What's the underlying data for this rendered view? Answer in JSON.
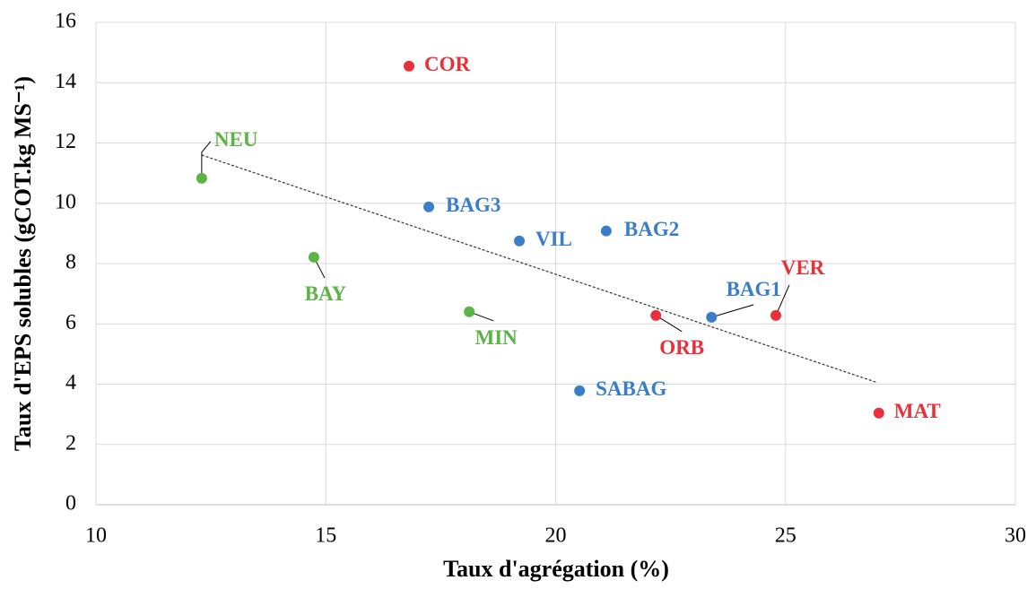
{
  "chart_data": {
    "type": "scatter",
    "x_label": "Taux d'agrégation (%)",
    "y_label": "Taux d'EPS solubles (gCOT.kg MS⁻¹)",
    "xlim": [
      10,
      30
    ],
    "xticks": [
      10,
      15,
      20,
      25,
      30
    ],
    "ylim": [
      0,
      16
    ],
    "yticks": [
      0,
      2,
      4,
      6,
      8,
      10,
      12,
      14,
      16
    ],
    "grid": true,
    "points": [
      {
        "label": "COR",
        "x": 16.81,
        "y": 14.55,
        "color": "#e8313a"
      },
      {
        "label": "NEU",
        "x": 12.3,
        "y": 10.83,
        "color": "#5cb346"
      },
      {
        "label": "BAG3",
        "x": 17.24,
        "y": 9.88,
        "color": "#3a7dc9"
      },
      {
        "label": "VIL",
        "x": 19.21,
        "y": 8.75,
        "color": "#3a7dc9"
      },
      {
        "label": "BAG2",
        "x": 21.1,
        "y": 9.08,
        "color": "#3a7dc9"
      },
      {
        "label": "BAY",
        "x": 14.74,
        "y": 8.21,
        "color": "#5cb346"
      },
      {
        "label": "MIN",
        "x": 18.12,
        "y": 6.4,
        "color": "#5cb346"
      },
      {
        "label": "ORB",
        "x": 22.18,
        "y": 6.28,
        "color": "#e8313a"
      },
      {
        "label": "BAG1",
        "x": 23.39,
        "y": 6.22,
        "color": "#3a7dc9"
      },
      {
        "label": "VER",
        "x": 24.79,
        "y": 6.28,
        "color": "#e8313a"
      },
      {
        "label": "SABAG",
        "x": 20.52,
        "y": 3.78,
        "color": "#3a7dc9"
      },
      {
        "label": "MAT",
        "x": 27.03,
        "y": 3.04,
        "color": "#e8313a"
      }
    ],
    "trendline": {
      "x": [
        12.3,
        27.0
      ],
      "y": [
        11.6,
        4.05
      ],
      "color": "#333333"
    }
  }
}
